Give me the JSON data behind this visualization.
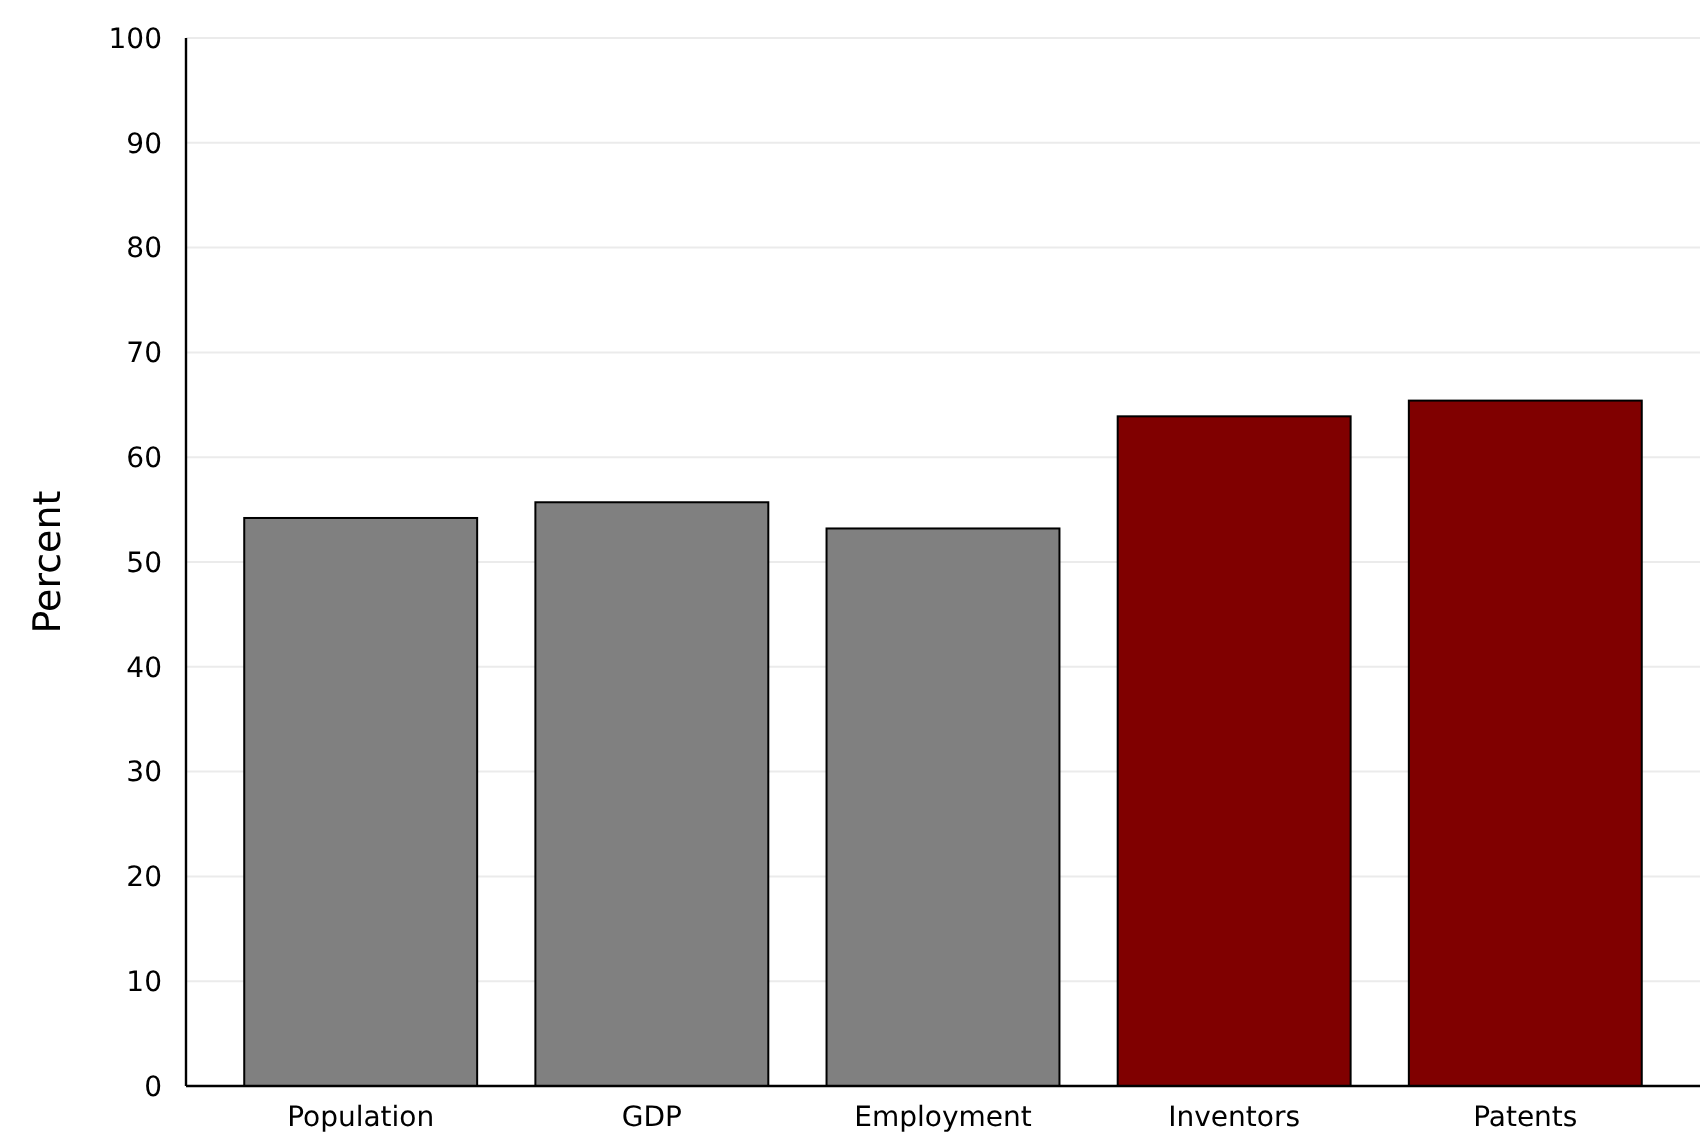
{
  "chart_data": {
    "type": "bar",
    "ylabel": "Percent",
    "categories": [
      "Population",
      "GDP",
      "Employment",
      "Inventors",
      "Patents"
    ],
    "values": [
      54.2,
      55.7,
      53.2,
      63.9,
      65.4
    ],
    "colors": [
      "#808080",
      "#808080",
      "#808080",
      "#800000",
      "#800000"
    ],
    "ylim": [
      0,
      100
    ],
    "yticks": [
      0,
      10,
      20,
      30,
      40,
      50,
      60,
      70,
      80,
      90,
      100
    ],
    "grid": "y"
  }
}
